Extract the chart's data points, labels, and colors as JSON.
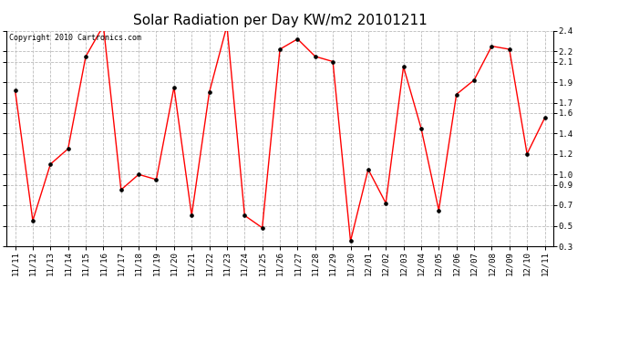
{
  "title": "Solar Radiation per Day KW/m2 20101211",
  "copyright_text": "Copyright 2010 Cartronics.com",
  "labels": [
    "11/11",
    "11/12",
    "11/13",
    "11/14",
    "11/15",
    "11/16",
    "11/17",
    "11/18",
    "11/19",
    "11/20",
    "11/21",
    "11/22",
    "11/23",
    "11/24",
    "11/25",
    "11/26",
    "11/27",
    "11/28",
    "11/29",
    "11/30",
    "12/01",
    "12/02",
    "12/03",
    "12/04",
    "12/05",
    "12/06",
    "12/07",
    "12/08",
    "12/09",
    "12/10",
    "12/11"
  ],
  "values": [
    1.82,
    0.55,
    1.1,
    1.25,
    2.15,
    2.45,
    0.85,
    1.0,
    0.95,
    1.85,
    0.6,
    1.8,
    2.45,
    0.6,
    0.48,
    2.22,
    2.32,
    2.15,
    2.1,
    0.35,
    1.05,
    0.72,
    2.05,
    1.45,
    0.65,
    1.78,
    1.92,
    2.25,
    2.22,
    1.2,
    1.55
  ],
  "ylim": [
    0.3,
    2.4
  ],
  "yticks": [
    0.3,
    0.5,
    0.7,
    0.9,
    1.0,
    1.2,
    1.4,
    1.6,
    1.7,
    1.9,
    2.1,
    2.2,
    2.4
  ],
  "line_color": "#ff0000",
  "marker": "o",
  "marker_color": "#000000",
  "marker_size": 2.5,
  "bg_color": "#ffffff",
  "grid_color": "#bbbbbb",
  "title_fontsize": 11,
  "tick_fontsize": 6.5,
  "copyright_fontsize": 6.0
}
